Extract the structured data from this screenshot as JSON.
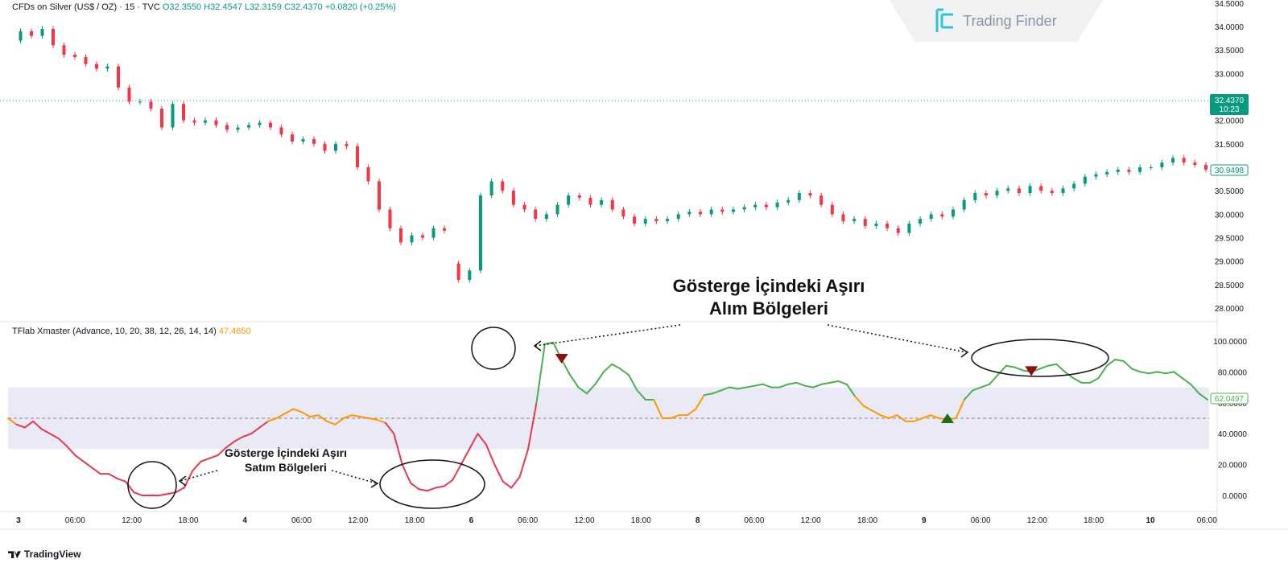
{
  "header": {
    "symbol": "CFDs on Silver (US$ / OZ) · 15 · TVC",
    "open": "O32.3550",
    "high": "H32.4547",
    "low": "L32.3159",
    "close": "C32.4370",
    "change": "+0.0820 (+0.25%)"
  },
  "indicator": {
    "name": "TFlab Xmaster (Advance, 10, 20, 38, 12, 26, 14, 14)",
    "value": "47.4650"
  },
  "watermark": {
    "text": "Trading Finder"
  },
  "branding": {
    "text": "TradingView"
  },
  "annotations": {
    "overbought_line1": "Gösterge İçindeki Aşırı",
    "overbought_line2": "Alım Bölgeleri",
    "oversold_line1": "Gösterge İçindeki Aşırı",
    "oversold_line2": "Satım Bölgeleri"
  },
  "price_axis": {
    "ticks": [
      "34.5000",
      "34.0000",
      "33.5000",
      "33.0000",
      "32.5000",
      "32.0000",
      "31.5000",
      "31.0000",
      "30.5000",
      "30.0000",
      "29.5000",
      "29.0000",
      "28.5000",
      "28.0000"
    ],
    "last_price": "32.4370",
    "countdown": "10:23",
    "ma_value": "30.9498"
  },
  "osc_axis": {
    "ticks": [
      "100.0000",
      "80.0000",
      "60.0000",
      "40.0000",
      "20.0000",
      "0.0000"
    ],
    "current_value": "62.0497"
  },
  "time_axis": {
    "labels": [
      "3",
      "06:00",
      "12:00",
      "18:00",
      "4",
      "06:00",
      "12:00",
      "18:00",
      "6",
      "06:00",
      "12:00",
      "18:00",
      "8",
      "06:00",
      "12:00",
      "18:00",
      "9",
      "06:00",
      "12:00",
      "18:00",
      "10",
      "06:00"
    ]
  },
  "colors": {
    "up": "#089981",
    "down": "#f23645",
    "osc_green": "#4caf50",
    "osc_red": "#e53950",
    "osc_orange": "#ff9800",
    "band": "#e9eaf5"
  },
  "chart_data": {
    "type": "line",
    "price_panel": {
      "ylim": [
        28.0,
        34.5
      ],
      "series": [
        {
          "name": "close",
          "values": [
            33.7,
            33.9,
            33.8,
            33.95,
            33.6,
            33.4,
            33.35,
            33.2,
            33.1,
            33.15,
            32.7,
            32.4,
            32.4,
            32.25,
            31.85,
            32.35,
            32.0,
            31.95,
            32.0,
            31.9,
            31.8,
            31.85,
            31.9,
            31.95,
            31.85,
            31.7,
            31.55,
            31.6,
            31.5,
            31.35,
            31.5,
            31.45,
            31.0,
            30.7,
            30.1,
            29.7,
            29.4,
            29.55,
            29.5,
            29.7,
            29.65
          ]
        },
        {
          "name": "close_after_gap",
          "values": [
            28.95,
            28.6,
            28.8,
            30.4,
            30.7,
            30.5,
            30.2,
            30.1,
            29.9,
            30.0,
            30.2,
            30.4,
            30.35,
            30.2,
            30.3,
            30.1,
            29.95,
            29.8,
            29.9,
            29.85,
            29.9,
            30.0,
            30.05,
            30.0,
            30.1,
            30.05,
            30.1,
            30.15,
            30.2,
            30.15,
            30.25,
            30.3,
            30.45,
            30.4,
            30.2,
            30.0,
            29.85,
            29.9,
            29.75,
            29.8,
            29.7,
            29.6,
            29.8,
            29.9,
            30.0,
            29.95,
            30.1,
            30.3,
            30.45,
            30.4,
            30.5,
            30.55,
            30.45,
            30.6,
            30.5,
            30.45,
            30.55,
            30.65,
            30.8,
            30.85,
            30.9,
            30.95,
            30.9,
            31.0,
            31.0,
            31.1,
            31.2,
            31.1,
            31.05,
            30.95
          ]
        }
      ]
    },
    "oscillator_panel": {
      "ylim": [
        -5,
        105
      ],
      "band": [
        30,
        70
      ],
      "midline": 50,
      "values": [
        50,
        46,
        44,
        48,
        43,
        40,
        37,
        32,
        26,
        22,
        18,
        14,
        14,
        11,
        9,
        2,
        0,
        0,
        0,
        1,
        2,
        5,
        16,
        22,
        24,
        26,
        31,
        35,
        38,
        40,
        44,
        48,
        50,
        53,
        56,
        54,
        51,
        52,
        48,
        46,
        50,
        52,
        51,
        50,
        49,
        47,
        40,
        20,
        8,
        4,
        3,
        5,
        6,
        10,
        20,
        30,
        40,
        33,
        20,
        9,
        5,
        12,
        30,
        60,
        98,
        99,
        88,
        78,
        70,
        66,
        72,
        80,
        85,
        82,
        78,
        68,
        62,
        62,
        50,
        50,
        52,
        52,
        56,
        65,
        66,
        68,
        70,
        69,
        70,
        71,
        72,
        70,
        70,
        72,
        73,
        71,
        70,
        72,
        73,
        74,
        72,
        64,
        58,
        55,
        52,
        50,
        52,
        48,
        48,
        50,
        52,
        50,
        49,
        50,
        62,
        68,
        70,
        72,
        78,
        84,
        83,
        81,
        80,
        82,
        84,
        85,
        80,
        76,
        73,
        73,
        76,
        84,
        88,
        87,
        82,
        80,
        79,
        80,
        79,
        80,
        76,
        72,
        66,
        62
      ]
    },
    "signals": [
      {
        "type": "sell",
        "x_index": 66,
        "value": 88
      },
      {
        "type": "buy",
        "x_index": 112,
        "value": 50
      },
      {
        "type": "sell",
        "x_index": 122,
        "value": 80
      }
    ]
  }
}
